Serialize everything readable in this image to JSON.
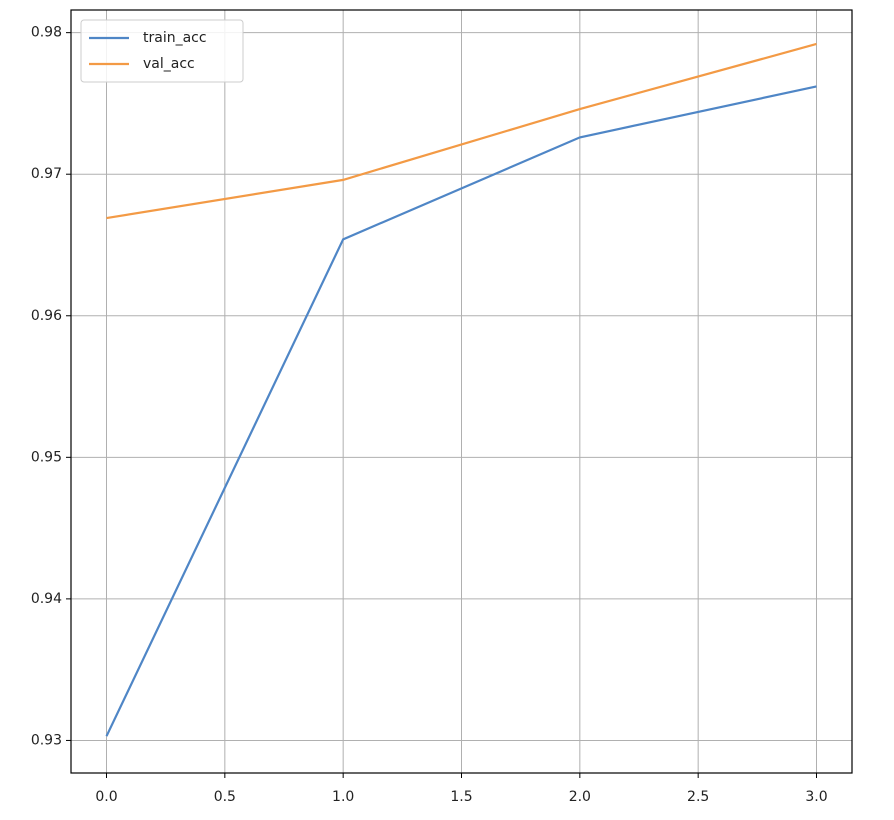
{
  "chart_data": {
    "type": "line",
    "x": [
      0,
      1,
      2,
      3
    ],
    "series": [
      {
        "name": "train_acc",
        "color": "#4f86c6",
        "values": [
          0.9303,
          0.9654,
          0.9726,
          0.9762
        ]
      },
      {
        "name": "val_acc",
        "color": "#f39a45",
        "values": [
          0.9669,
          0.9696,
          0.9746,
          0.9792
        ]
      }
    ],
    "xlim": [
      -0.15,
      3.15
    ],
    "xticks": [
      {
        "value": 0,
        "label": "0.0"
      },
      0.5,
      {
        "value": 1,
        "label": "1.0"
      },
      1.5,
      {
        "value": 2,
        "label": "2.0"
      },
      2.5,
      {
        "value": 3,
        "label": "3.0"
      }
    ],
    "ylim": [
      0.9277,
      0.9816
    ],
    "yticks": [
      0.93,
      0.94,
      0.95,
      0.96,
      0.97,
      0.98
    ],
    "grid": true,
    "legend": "upper left"
  }
}
